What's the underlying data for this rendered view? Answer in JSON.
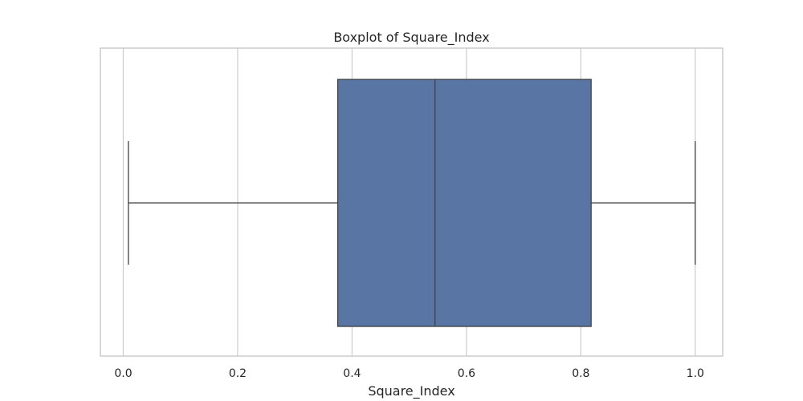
{
  "chart_data": {
    "type": "boxplot",
    "title": "Boxplot of Square_Index",
    "xlabel": "Square_Index",
    "ylabel": "",
    "xlim": [
      -0.04,
      1.048
    ],
    "x_ticks": [
      0.0,
      0.2,
      0.4,
      0.6,
      0.8,
      1.0
    ],
    "x_tick_labels": [
      "0.0",
      "0.2",
      "0.4",
      "0.6",
      "0.8",
      "1.0"
    ],
    "grid": true,
    "box": {
      "whisker_low": 0.009,
      "q1": 0.375,
      "median": 0.545,
      "q3": 0.818,
      "whisker_high": 1.0
    },
    "colors": {
      "box_fill": "#5975a4",
      "line": "#404040",
      "grid": "#cccccc",
      "frame": "#cccccc"
    }
  }
}
